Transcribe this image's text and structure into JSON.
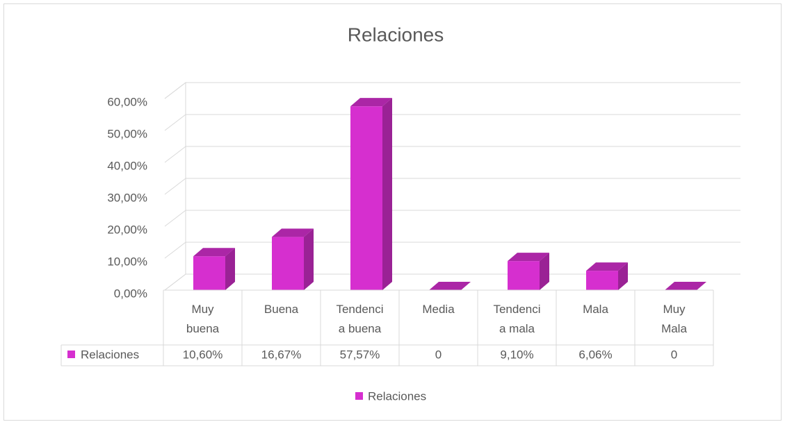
{
  "chart_data": {
    "type": "bar",
    "title": "Relaciones",
    "categories": [
      "Muy buena",
      "Buena",
      "Tendencia buena",
      "Media",
      "Tendencia mala",
      "Mala",
      "Muy Mala"
    ],
    "series": [
      {
        "name": "Relaciones",
        "color": "#d62fcf",
        "values": [
          10.6,
          16.67,
          57.57,
          0,
          9.1,
          6.06,
          0
        ],
        "value_labels": [
          "10,60%",
          "16,67%",
          "57,57%",
          "0",
          "9,10%",
          "6,06%",
          "0"
        ]
      }
    ],
    "ylim": [
      0,
      60
    ],
    "yticks": [
      {
        "value": 0,
        "label": "0,00%"
      },
      {
        "value": 10,
        "label": "10,00%"
      },
      {
        "value": 20,
        "label": "20,00%"
      },
      {
        "value": 30,
        "label": "30,00%"
      },
      {
        "value": 40,
        "label": "40,00%"
      },
      {
        "value": 50,
        "label": "50,00%"
      },
      {
        "value": 60,
        "label": "60,00%"
      }
    ],
    "grid": true,
    "legend": "bottom"
  }
}
